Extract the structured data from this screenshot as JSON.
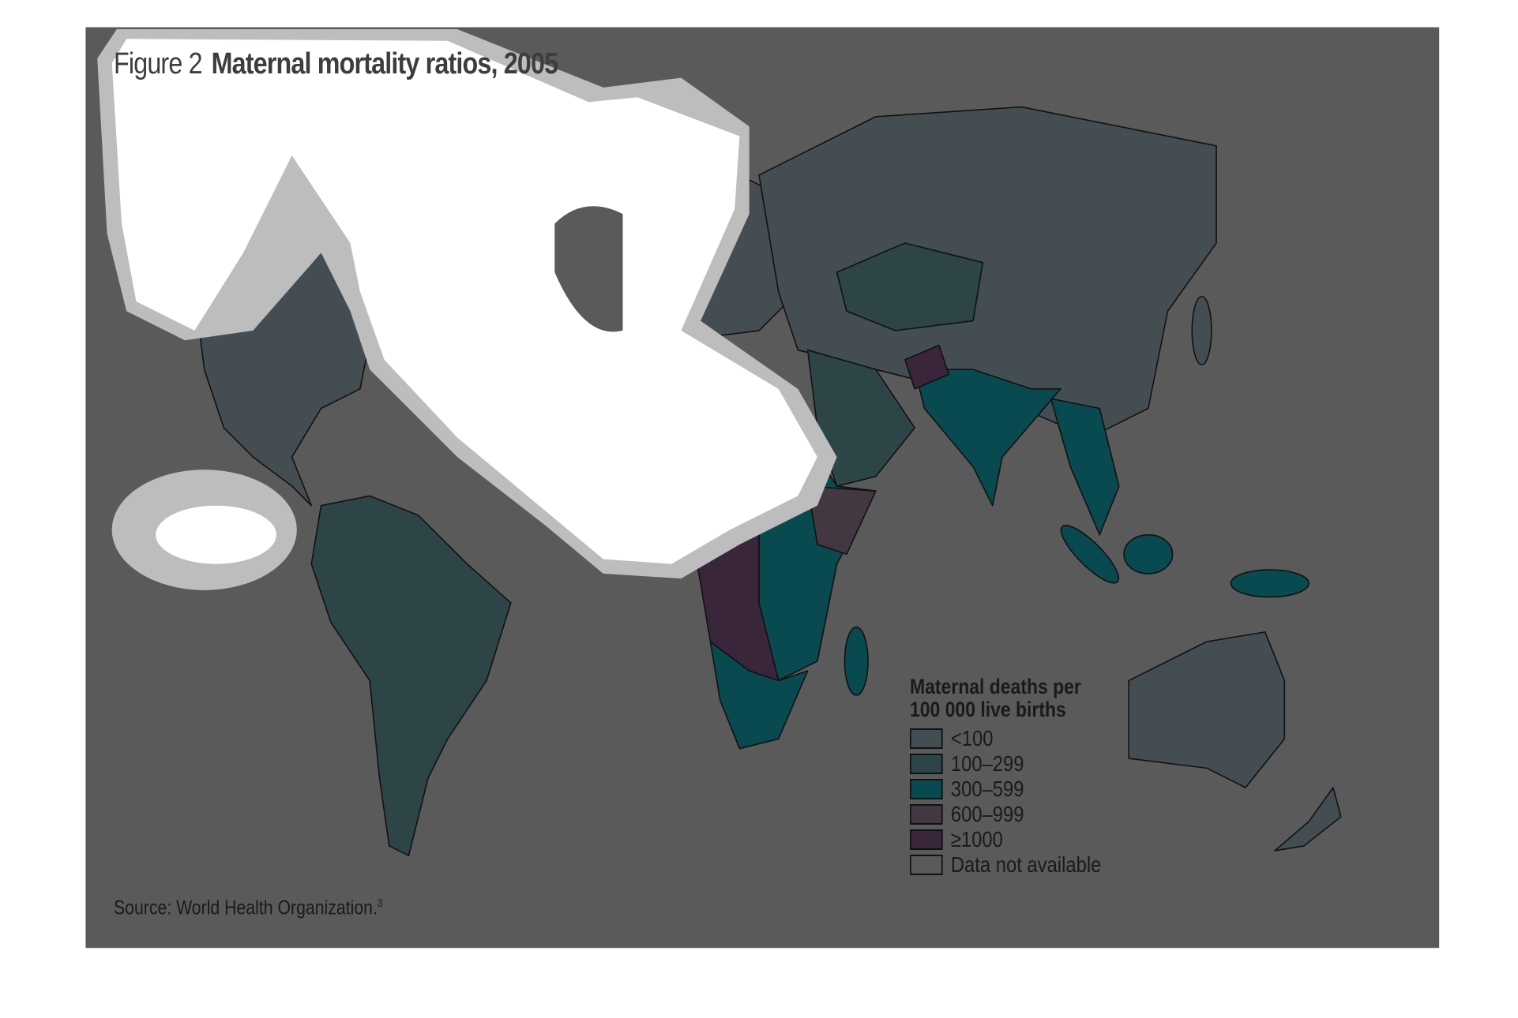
{
  "figure": {
    "label": "Figure 2",
    "title": "Maternal mortality ratios, 2005"
  },
  "legend": {
    "title_line1": "Maternal deaths per",
    "title_line2": "100 000 live births",
    "items": [
      {
        "label": "<100",
        "color": "#444e52"
      },
      {
        "label": "100–299",
        "color": "#2e4548"
      },
      {
        "label": "300–599",
        "color": "#084a50"
      },
      {
        "label": "600–999",
        "color": "#433742"
      },
      {
        "label": "≥1000",
        "color": "#3a263a"
      },
      {
        "label": "Data not available",
        "color": "#5a5a5a"
      }
    ]
  },
  "source": {
    "text": "Source: World Health Organization.",
    "ref": "3"
  },
  "colors": {
    "background": "#5a5a5a",
    "ocean_panel": "#5a5a5a",
    "highlight": "#ffffff",
    "halo": "#bdbdbd"
  }
}
